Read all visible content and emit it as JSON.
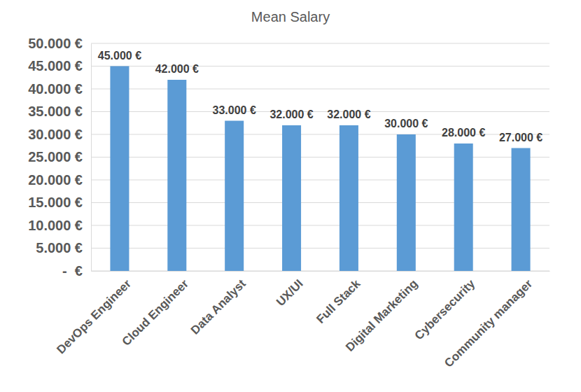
{
  "chart_data": {
    "type": "bar",
    "title": "Mean Salary",
    "categories": [
      "DevOps Engineer",
      "Cloud Engineer",
      "Data Analyst",
      "UX/UI",
      "Full Stack",
      "Digital Marketing",
      "Cybersecurity",
      "Community manager"
    ],
    "values": [
      45000,
      42000,
      33000,
      32000,
      32000,
      30000,
      28000,
      27000
    ],
    "value_labels": [
      "45.000 €",
      "42.000 €",
      "33.000 €",
      "32.000 €",
      "32.000 €",
      "30.000 €",
      "28.000 €",
      "27.000 €"
    ],
    "color": "#5b9bd5",
    "ylim": [
      0,
      50000
    ],
    "yticks": [
      {
        "value": 0,
        "label": "-  €"
      },
      {
        "value": 5000,
        "label": "5.000 €"
      },
      {
        "value": 10000,
        "label": "10.000 €"
      },
      {
        "value": 15000,
        "label": "15.000 €"
      },
      {
        "value": 20000,
        "label": "20.000 €"
      },
      {
        "value": 25000,
        "label": "25.000 €"
      },
      {
        "value": 30000,
        "label": "30.000 €"
      },
      {
        "value": 35000,
        "label": "35.000 €"
      },
      {
        "value": 40000,
        "label": "40.000 €"
      },
      {
        "value": 45000,
        "label": "45.000 €"
      },
      {
        "value": 50000,
        "label": "50.000 €"
      }
    ],
    "grid": true,
    "data_labels": true
  }
}
